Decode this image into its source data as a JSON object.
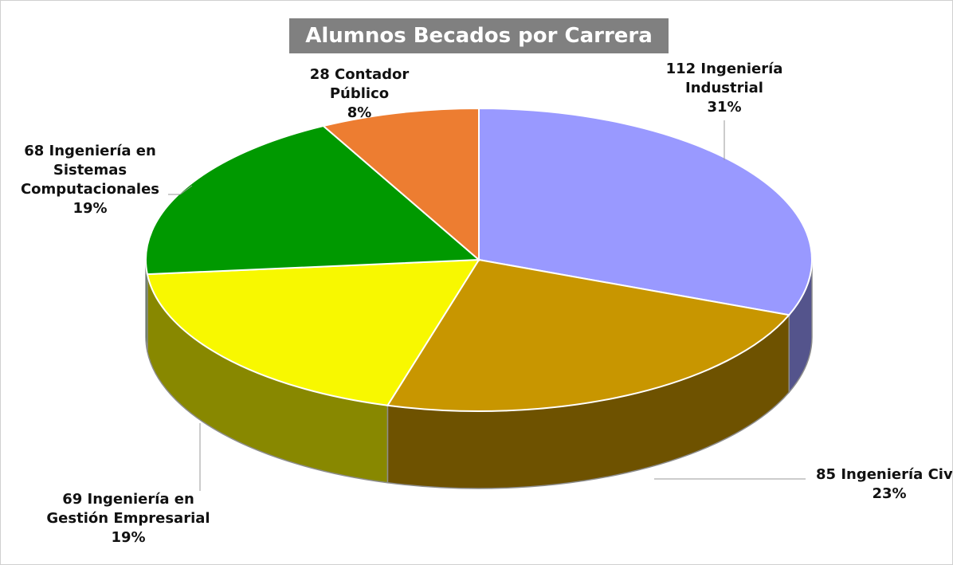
{
  "chart_data": {
    "type": "pie3d",
    "title": "Alumnos Becados por Carrera",
    "categories": [
      "Ingeniería Industrial",
      "Ingeniería Civil",
      "Ingeniería en Gestión Empresarial",
      "Ingeniería en Sistemas Computacionales",
      "Contador Público"
    ],
    "values": [
      112,
      85,
      69,
      68,
      28
    ],
    "percent_labels": [
      "31%",
      "23%",
      "19%",
      "19%",
      "8%"
    ],
    "colors": [
      "#9999ff",
      "#c89600",
      "#f8f800",
      "#009900",
      "#ed7d31"
    ]
  }
}
